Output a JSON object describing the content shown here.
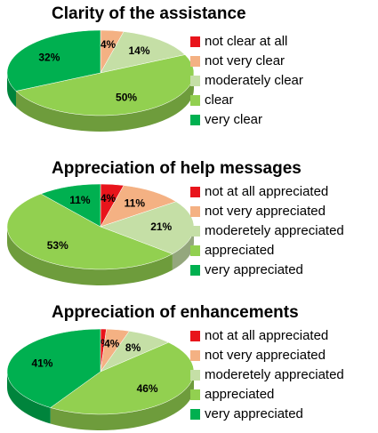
{
  "chart_data": [
    {
      "type": "pie",
      "title": "Clarity of the assistance",
      "categories": [
        "not clear at all",
        "not very clear",
        "moderately clear",
        "clear",
        "very clear"
      ],
      "values": [
        0,
        4,
        14,
        50,
        32
      ],
      "value_labels": [
        null,
        "4%",
        "14%",
        "50%",
        "32%"
      ],
      "colors": [
        "#e8141b",
        "#f4b183",
        "#c5dfa6",
        "#92d050",
        "#00b050"
      ]
    },
    {
      "type": "pie",
      "title": "Appreciation of help messages",
      "categories": [
        "not at all appreciated",
        "not very appreciated",
        "moderetely appreciated",
        "appreciated",
        "very appreciated"
      ],
      "values": [
        4,
        11,
        21,
        53,
        11
      ],
      "value_labels": [
        "4%",
        "11%",
        "21%",
        "53%",
        "11%"
      ],
      "colors": [
        "#e8141b",
        "#f4b183",
        "#c5dfa6",
        "#92d050",
        "#00b050"
      ]
    },
    {
      "type": "pie",
      "title": "Appreciation of enhancements",
      "categories": [
        "not at all appreciated",
        "not very appreciated",
        "moderetely appreciated",
        "appreciated",
        "very appreciated"
      ],
      "values": [
        1,
        4,
        8,
        46,
        41
      ],
      "value_labels": [
        "1%",
        "4%",
        "8%",
        "46%",
        "41%"
      ],
      "colors": [
        "#e8141b",
        "#f4b183",
        "#c5dfa6",
        "#92d050",
        "#00b050"
      ]
    }
  ]
}
